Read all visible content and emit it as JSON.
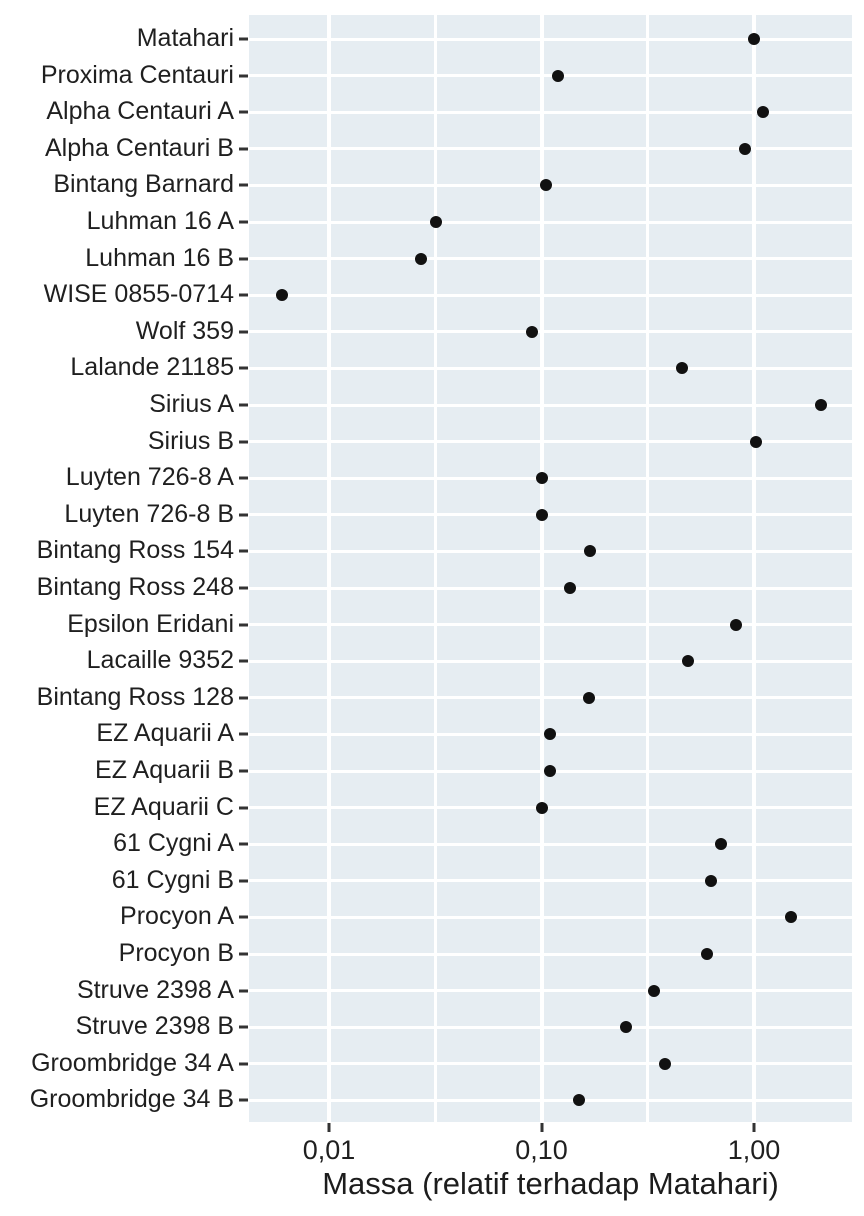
{
  "chart_data": {
    "type": "scatter",
    "subtype": "cleveland-dot-plot",
    "orientation": "horizontal",
    "title": "",
    "xlabel": "Massa (relatif terhadap Matahari)",
    "ylabel": "",
    "x_scale": "log10",
    "xlim": [
      0.0042,
      2.9
    ],
    "grid": true,
    "legend_position": "none",
    "x_ticks": [
      {
        "value": 0.01,
        "label": "0,01"
      },
      {
        "value": 0.1,
        "label": "0,10"
      },
      {
        "value": 1.0,
        "label": "1,00"
      }
    ],
    "x_minor_gridlines": [
      0.0316,
      0.316
    ],
    "categories": [
      "Matahari",
      "Proxima Centauri",
      "Alpha Centauri A",
      "Alpha Centauri B",
      "Bintang Barnard",
      "Luhman 16 A",
      "Luhman 16 B",
      "WISE 0855-0714",
      "Wolf 359",
      "Lalande 21185",
      "Sirius A",
      "Sirius B",
      "Luyten 726-8 A",
      "Luyten 726-8 B",
      "Bintang Ross 154",
      "Bintang Ross 248",
      "Epsilon Eridani",
      "Lacaille 9352",
      "Bintang Ross 128",
      "EZ Aquarii A",
      "EZ Aquarii B",
      "EZ Aquarii C",
      "61 Cygni A",
      "61 Cygni B",
      "Procyon A",
      "Procyon B",
      "Struve 2398 A",
      "Struve 2398 B",
      "Groombridge 34 A",
      "Groombridge 34 B"
    ],
    "values": [
      1.0,
      0.12,
      1.1,
      0.91,
      0.105,
      0.032,
      0.027,
      0.006,
      0.09,
      0.46,
      2.06,
      1.02,
      0.1,
      0.1,
      0.17,
      0.136,
      0.82,
      0.49,
      0.168,
      0.11,
      0.11,
      0.1,
      0.7,
      0.63,
      1.5,
      0.6,
      0.34,
      0.25,
      0.38,
      0.15
    ]
  },
  "style": {
    "panel_background": "#e6edf2",
    "gridline_color": "#ffffff",
    "dot_color": "#111111",
    "text_color": "#1f1f1f",
    "tick_color": "#333333",
    "figure_background": "#ffffff"
  }
}
